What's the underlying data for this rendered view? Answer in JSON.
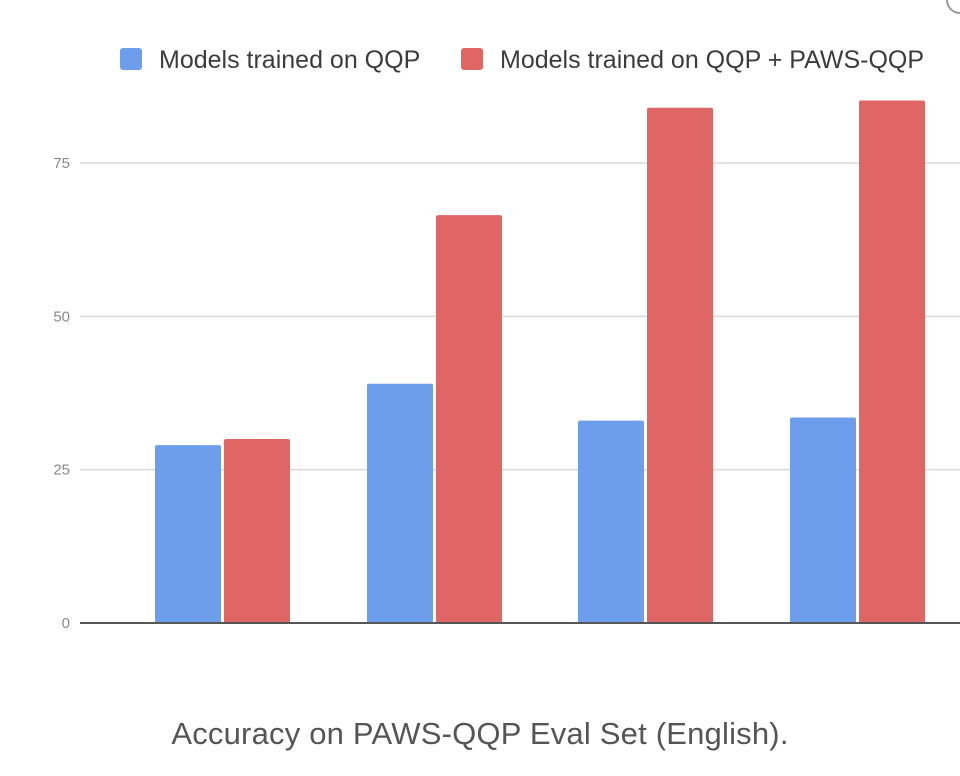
{
  "chart_data": {
    "type": "bar",
    "caption": "Accuracy on PAWS-QQP Eval Set (English).",
    "categories": [
      "",
      "",
      "",
      ""
    ],
    "series": [
      {
        "name": "Models trained on QQP",
        "color": "#6d9eeb",
        "values": [
          29,
          39,
          33,
          33.5
        ]
      },
      {
        "name": "Models trained on QQP + PAWS-QQP",
        "color": "#e06666",
        "values": [
          30,
          66.5,
          84,
          85.2
        ]
      }
    ],
    "y_ticks": [
      0,
      25,
      50,
      75
    ],
    "ylim": [
      0,
      85
    ],
    "grid": true,
    "legend_position": "top"
  }
}
